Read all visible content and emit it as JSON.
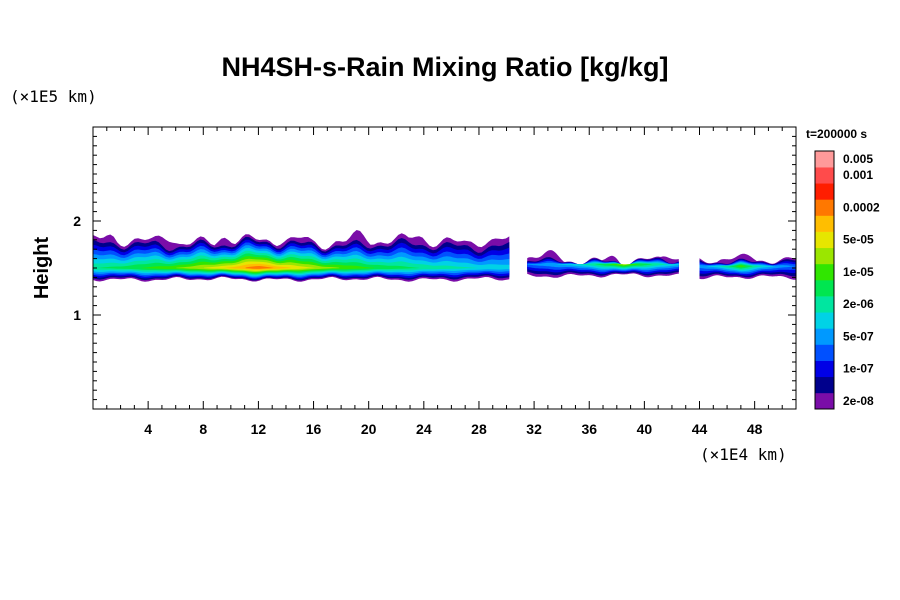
{
  "chart_data": {
    "type": "heatmap",
    "title": "NH4SH-s-Rain Mixing Ratio [kg/kg]",
    "ylabel": "Height",
    "xunit": "(×1E4 km)",
    "yunit": "(×1E5 km)",
    "time_label": "t=200000 s",
    "xlim": [
      0,
      51
    ],
    "ylim": [
      0,
      3
    ],
    "x_ticks": [
      4,
      8,
      12,
      16,
      20,
      24,
      28,
      32,
      36,
      40,
      44,
      48
    ],
    "y_ticks": [
      1,
      2
    ],
    "colorbar": {
      "colors": [
        "#7a0da8",
        "#00008c",
        "#0000e6",
        "#0050ff",
        "#0099ff",
        "#00d2e6",
        "#00e6a0",
        "#00e650",
        "#30e600",
        "#9be600",
        "#e6e600",
        "#ffbe00",
        "#ff7800",
        "#ff1e00",
        "#ff4b4b",
        "#ff9a9a"
      ],
      "labels": [
        {
          "text": "2e-08",
          "band": 1
        },
        {
          "text": "1e-07",
          "band": 3
        },
        {
          "text": "5e-07",
          "band": 5
        },
        {
          "text": "2e-06",
          "band": 7
        },
        {
          "text": "1e-05",
          "band": 9
        },
        {
          "text": "5e-05",
          "band": 11
        },
        {
          "text": "0.0002",
          "band": 13
        },
        {
          "text": "0.001",
          "band": 15
        },
        {
          "text": "0.005",
          "band": 16
        }
      ]
    },
    "cloud_bands": [
      {
        "x0": 0.0,
        "x1": 30.2,
        "base": 1.38,
        "top_base": 1.78,
        "top_amp": 0.09,
        "peak": 13,
        "peak_x": 12.0
      },
      {
        "x0": 31.5,
        "x1": 42.5,
        "base": 1.42,
        "top_base": 1.58,
        "top_amp": 0.06,
        "peak": 10,
        "peak_x": 38.5
      },
      {
        "x0": 44.0,
        "x1": 51.0,
        "base": 1.4,
        "top_base": 1.58,
        "top_amp": 0.05,
        "peak": 9,
        "peak_x": 47.0
      }
    ]
  }
}
